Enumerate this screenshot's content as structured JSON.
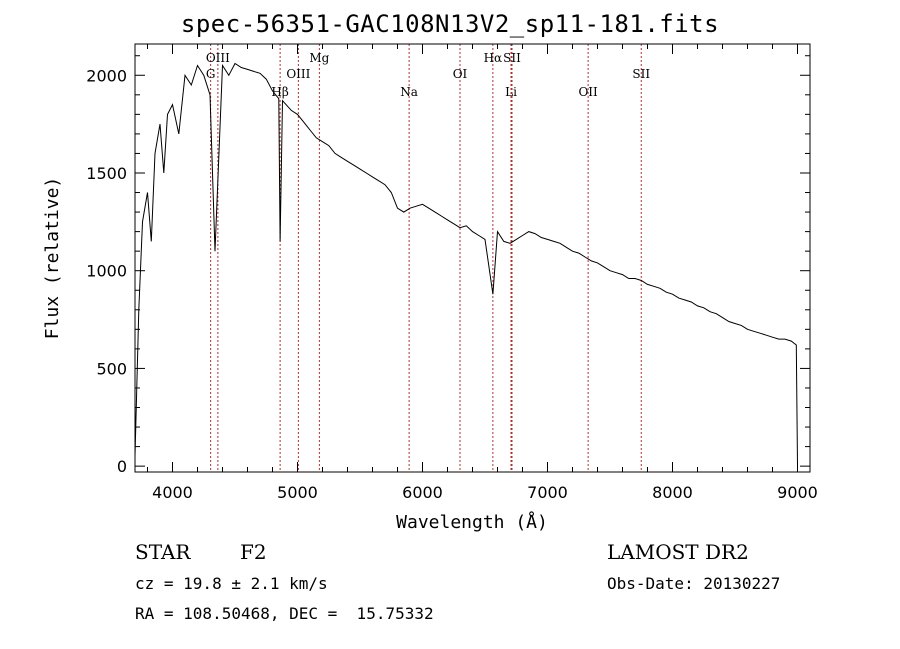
{
  "chart_data": {
    "type": "line",
    "title": "spec-56351-GAC108N13V2_sp11-181.fits",
    "xlabel": "Wavelength (Å)",
    "ylabel": "Flux (relative)",
    "xlim": [
      3700,
      9100
    ],
    "ylim": [
      -30,
      2160
    ],
    "xticks": [
      4000,
      5000,
      6000,
      7000,
      8000,
      9000
    ],
    "yticks": [
      0,
      500,
      1000,
      1500,
      2000
    ],
    "line_color": "#000000",
    "marker_color": "#b03030",
    "spectral_lines": [
      {
        "label": "G",
        "x": 4305,
        "row": 2
      },
      {
        "label": "OIII",
        "x": 4363,
        "row": 1
      },
      {
        "label": "Hβ",
        "x": 4861,
        "row": 3
      },
      {
        "label": "OIII",
        "x": 5007,
        "row": 2
      },
      {
        "label": "Mg",
        "x": 5175,
        "row": 1
      },
      {
        "label": "Na",
        "x": 5893,
        "row": 3
      },
      {
        "label": "OI",
        "x": 6300,
        "row": 2
      },
      {
        "label": "Hα",
        "x": 6563,
        "row": 1
      },
      {
        "label": "SII",
        "x": 6716,
        "row": 1
      },
      {
        "label": "Li",
        "x": 6708,
        "row": 3
      },
      {
        "label": "OII",
        "x": 7325,
        "row": 3
      },
      {
        "label": "SII",
        "x": 7750,
        "row": 2
      }
    ],
    "series": [
      {
        "x": [
          3700,
          3730,
          3760,
          3800,
          3830,
          3860,
          3900,
          3930,
          3960,
          4000,
          4050,
          4100,
          4150,
          4200,
          4250,
          4300,
          4340,
          4400,
          4450,
          4500,
          4550,
          4600,
          4650,
          4700,
          4750,
          4800,
          4850,
          4861,
          4880,
          4950,
          5000,
          5050,
          5100,
          5150,
          5200,
          5250,
          5300,
          5350,
          5400,
          5450,
          5500,
          5550,
          5600,
          5650,
          5700,
          5750,
          5800,
          5850,
          5900,
          5950,
          6000,
          6050,
          6100,
          6150,
          6200,
          6250,
          6300,
          6350,
          6400,
          6450,
          6500,
          6563,
          6600,
          6650,
          6700,
          6750,
          6800,
          6850,
          6900,
          6950,
          7000,
          7050,
          7100,
          7150,
          7200,
          7250,
          7300,
          7350,
          7400,
          7450,
          7500,
          7550,
          7600,
          7650,
          7700,
          7750,
          7800,
          7850,
          7900,
          7950,
          8000,
          8050,
          8100,
          8150,
          8200,
          8250,
          8300,
          8350,
          8400,
          8450,
          8500,
          8550,
          8600,
          8650,
          8700,
          8750,
          8800,
          8850,
          8900,
          8950,
          8990,
          9000
        ],
        "y": [
          50,
          800,
          1250,
          1400,
          1150,
          1600,
          1750,
          1500,
          1800,
          1850,
          1700,
          2000,
          1950,
          2050,
          2000,
          1900,
          1100,
          2050,
          2000,
          2060,
          2040,
          2030,
          2020,
          2010,
          1980,
          1920,
          1880,
          1150,
          1870,
          1820,
          1800,
          1760,
          1720,
          1680,
          1660,
          1640,
          1600,
          1580,
          1560,
          1540,
          1520,
          1500,
          1480,
          1460,
          1440,
          1400,
          1320,
          1300,
          1320,
          1330,
          1340,
          1320,
          1300,
          1280,
          1260,
          1240,
          1220,
          1230,
          1200,
          1180,
          1160,
          880,
          1200,
          1150,
          1140,
          1160,
          1180,
          1200,
          1190,
          1170,
          1160,
          1150,
          1140,
          1120,
          1100,
          1090,
          1070,
          1050,
          1040,
          1020,
          1000,
          990,
          980,
          960,
          960,
          950,
          930,
          920,
          910,
          890,
          880,
          860,
          850,
          840,
          820,
          810,
          790,
          780,
          760,
          740,
          730,
          720,
          700,
          690,
          680,
          670,
          660,
          650,
          650,
          640,
          620,
          0
        ]
      }
    ]
  },
  "info": {
    "obj_class": "STAR",
    "subclass": "F2",
    "survey": "LAMOST DR2",
    "cz": "cz = 19.8 ± 2.1 km/s",
    "obs_date": "Obs-Date: 20130227",
    "coords": "RA = 108.50468, DEC =  15.75332"
  }
}
